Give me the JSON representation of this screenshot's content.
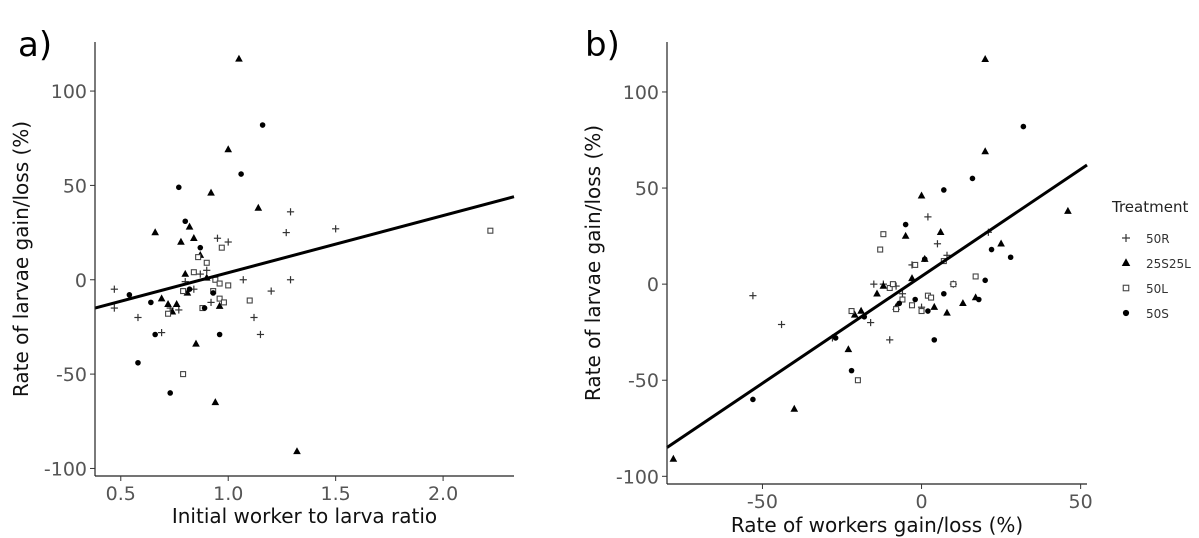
{
  "legend": {
    "title": "Treatment",
    "items": [
      {
        "label": "50R",
        "shape": "plus"
      },
      {
        "label": "25S25L",
        "shape": "triangle"
      },
      {
        "label": "50L",
        "shape": "square"
      },
      {
        "label": "50S",
        "shape": "circle"
      }
    ]
  },
  "chart_data": [
    {
      "type": "scatter",
      "panel_label": "a)",
      "xlabel": "Initial worker to larva ratio",
      "ylabel": "Rate of larvae gain/loss (%)",
      "xlim": [
        0.38,
        2.33
      ],
      "ylim": [
        -104,
        126
      ],
      "xticks": [
        0.5,
        1.0,
        1.5,
        2.0
      ],
      "xtick_labels": [
        "0.5",
        "1.0",
        "1.5",
        "2.0"
      ],
      "yticks": [
        -100,
        -50,
        0,
        50,
        100
      ],
      "ytick_labels": [
        "-100",
        "-50",
        "0",
        "50",
        "100"
      ],
      "grid": false,
      "regression": {
        "x": [
          0.38,
          2.33
        ],
        "y": [
          -15,
          44
        ]
      },
      "series": [
        {
          "name": "50R",
          "shape": "plus",
          "points": [
            [
              0.47,
              -5
            ],
            [
              0.47,
              -15
            ],
            [
              0.58,
              -20
            ],
            [
              0.69,
              -28
            ],
            [
              0.73,
              -15
            ],
            [
              0.77,
              -16
            ],
            [
              0.8,
              -1
            ],
            [
              0.84,
              -5
            ],
            [
              0.87,
              3
            ],
            [
              0.9,
              5
            ],
            [
              0.92,
              -12
            ],
            [
              0.95,
              22
            ],
            [
              1.0,
              20
            ],
            [
              1.07,
              0
            ],
            [
              1.12,
              -20
            ],
            [
              1.15,
              -29
            ],
            [
              1.2,
              -6
            ],
            [
              1.27,
              25
            ],
            [
              1.29,
              36
            ],
            [
              1.29,
              0
            ],
            [
              1.5,
              27
            ]
          ]
        },
        {
          "name": "25S25L",
          "shape": "triangle",
          "points": [
            [
              0.66,
              25
            ],
            [
              0.69,
              -10
            ],
            [
              0.72,
              -13
            ],
            [
              0.74,
              -17
            ],
            [
              0.76,
              -13
            ],
            [
              0.78,
              20
            ],
            [
              0.8,
              3
            ],
            [
              0.81,
              -7
            ],
            [
              0.82,
              28
            ],
            [
              0.84,
              22
            ],
            [
              0.85,
              -34
            ],
            [
              0.87,
              13
            ],
            [
              0.9,
              1
            ],
            [
              0.92,
              46
            ],
            [
              0.94,
              -65
            ],
            [
              0.96,
              -14
            ],
            [
              1.0,
              69
            ],
            [
              1.05,
              117
            ],
            [
              1.14,
              38
            ],
            [
              1.32,
              -91
            ]
          ]
        },
        {
          "name": "50L",
          "shape": "square",
          "points": [
            [
              0.72,
              -18
            ],
            [
              0.79,
              -6
            ],
            [
              0.79,
              -50
            ],
            [
              0.84,
              4
            ],
            [
              0.86,
              12
            ],
            [
              0.88,
              -15
            ],
            [
              0.9,
              9
            ],
            [
              0.93,
              -6
            ],
            [
              0.94,
              0
            ],
            [
              0.96,
              -2
            ],
            [
              0.96,
              -10
            ],
            [
              0.97,
              17
            ],
            [
              0.98,
              -12
            ],
            [
              1.0,
              -3
            ],
            [
              1.1,
              -11
            ],
            [
              2.22,
              26
            ]
          ]
        },
        {
          "name": "50S",
          "shape": "circle",
          "points": [
            [
              0.54,
              -8
            ],
            [
              0.58,
              -44
            ],
            [
              0.64,
              -12
            ],
            [
              0.66,
              -29
            ],
            [
              0.73,
              -60
            ],
            [
              0.77,
              49
            ],
            [
              0.8,
              31
            ],
            [
              0.82,
              -5
            ],
            [
              0.87,
              17
            ],
            [
              0.89,
              -15
            ],
            [
              0.93,
              -7
            ],
            [
              0.96,
              -29
            ],
            [
              1.06,
              56
            ],
            [
              1.16,
              82
            ]
          ]
        }
      ]
    },
    {
      "type": "scatter",
      "panel_label": "b)",
      "xlabel": "Rate of workers gain/loss (%)",
      "ylabel": "Rate of larvae gain/loss (%)",
      "xlim": [
        -80,
        52
      ],
      "ylim": [
        -104,
        126
      ],
      "xticks": [
        -50,
        0,
        50
      ],
      "xtick_labels": [
        "-50",
        "0",
        "50"
      ],
      "yticks": [
        -100,
        -50,
        0,
        50,
        100
      ],
      "ytick_labels": [
        "-100",
        "-50",
        "0",
        "50",
        "100"
      ],
      "grid": false,
      "regression": {
        "x": [
          -80,
          52
        ],
        "y": [
          -85,
          62
        ]
      },
      "series": [
        {
          "name": "50R",
          "shape": "plus",
          "points": [
            [
              -53,
              -6
            ],
            [
              -44,
              -21
            ],
            [
              -28,
              -28
            ],
            [
              -16,
              -20
            ],
            [
              -15,
              0
            ],
            [
              -12,
              0
            ],
            [
              -10,
              -29
            ],
            [
              -8,
              -1
            ],
            [
              -6,
              -5
            ],
            [
              -3,
              10
            ],
            [
              0,
              -12
            ],
            [
              2,
              35
            ],
            [
              5,
              21
            ],
            [
              8,
              15
            ],
            [
              10,
              0
            ],
            [
              21,
              27
            ]
          ]
        },
        {
          "name": "25S25L",
          "shape": "triangle",
          "points": [
            [
              -78,
              -91
            ],
            [
              -40,
              -65
            ],
            [
              -23,
              -34
            ],
            [
              -21,
              -16
            ],
            [
              -19,
              -14
            ],
            [
              -14,
              -5
            ],
            [
              -12,
              -1
            ],
            [
              -8,
              -12
            ],
            [
              -5,
              25
            ],
            [
              -3,
              3
            ],
            [
              0,
              46
            ],
            [
              1,
              13
            ],
            [
              4,
              -12
            ],
            [
              6,
              27
            ],
            [
              8,
              -15
            ],
            [
              13,
              -10
            ],
            [
              17,
              -7
            ],
            [
              20,
              69
            ],
            [
              20,
              117
            ],
            [
              25,
              21
            ],
            [
              46,
              38
            ]
          ]
        },
        {
          "name": "50L",
          "shape": "square",
          "points": [
            [
              -22,
              -14
            ],
            [
              -20,
              -50
            ],
            [
              -13,
              18
            ],
            [
              -12,
              26
            ],
            [
              -10,
              -2
            ],
            [
              -9,
              0
            ],
            [
              -8,
              -13
            ],
            [
              -6,
              -8
            ],
            [
              -3,
              -11
            ],
            [
              -2,
              10
            ],
            [
              0,
              -14
            ],
            [
              2,
              -6
            ],
            [
              3,
              -7
            ],
            [
              7,
              12
            ],
            [
              10,
              0
            ],
            [
              17,
              4
            ]
          ]
        },
        {
          "name": "50S",
          "shape": "circle",
          "points": [
            [
              -53,
              -60
            ],
            [
              -27,
              -28
            ],
            [
              -22,
              -45
            ],
            [
              -18,
              -17
            ],
            [
              -7,
              -10
            ],
            [
              -5,
              31
            ],
            [
              -2,
              -8
            ],
            [
              1,
              13
            ],
            [
              2,
              -14
            ],
            [
              4,
              -29
            ],
            [
              7,
              -5
            ],
            [
              7,
              49
            ],
            [
              16,
              55
            ],
            [
              18,
              -8
            ],
            [
              20,
              2
            ],
            [
              22,
              18
            ],
            [
              28,
              14
            ],
            [
              32,
              82
            ]
          ]
        }
      ]
    }
  ]
}
